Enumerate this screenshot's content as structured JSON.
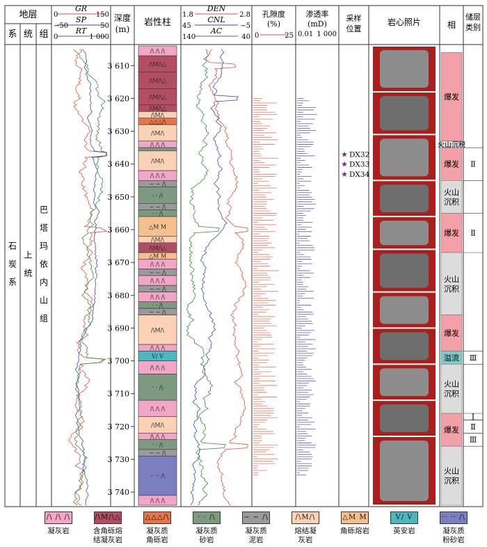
{
  "header": {
    "strata_title": "地层",
    "strata_cols": [
      "系",
      "统",
      "组"
    ],
    "log1": [
      {
        "name": "GR",
        "min": "0",
        "max": "150",
        "color": "#e0503c"
      },
      {
        "name": "SP",
        "min": "−50",
        "max": "50",
        "color": "#3c4ca0"
      },
      {
        "name": "RT",
        "min": "0",
        "max": "1 000",
        "color": "#3a8a3a"
      }
    ],
    "depth_title": "深度\n(m)",
    "lith_title": "岩性柱",
    "log2": [
      {
        "name": "DEN",
        "min": "1.8",
        "max": "2.8",
        "color": "#e0503c"
      },
      {
        "name": "CNL",
        "min": "45",
        "max": "−5",
        "color": "#3c4ca0"
      },
      {
        "name": "AC",
        "min": "140",
        "max": "40",
        "color": "#3a8a3a"
      }
    ],
    "porosity_title": "孔隙度\n(%)",
    "porosity_min": "0",
    "porosity_max": "25",
    "perm_title": "渗透率\n(mD)",
    "perm_min": "0.01",
    "perm_max": "1 000",
    "sample_title": "采样\n位置",
    "photo_title": "岩心照片",
    "facies_title": "相",
    "reservoir_title": "储层\n类别"
  },
  "strata": {
    "system": "石炭系",
    "series": "上统",
    "formation": "巴塔玛依内山组"
  },
  "depth_range": [
    3604,
    3744
  ],
  "depth_ticks": [
    "3 610",
    "3 620",
    "3 630",
    "3 640",
    "3 650",
    "3 660",
    "3 670",
    "3 680",
    "3 690",
    "3 700",
    "3 710",
    "3 720",
    "3 730",
    "3 740"
  ],
  "samples": [
    "DX32",
    "DX33",
    "DX34"
  ],
  "facies": [
    {
      "label": "爆发",
      "top": 3606,
      "bottom": 3633,
      "color": "#f4a0a8"
    },
    {
      "label": "火山沉积",
      "top": 3633,
      "bottom": 3635,
      "color": "#dcdcdc"
    },
    {
      "label": "爆发",
      "top": 3635,
      "bottom": 3645,
      "color": "#f4a0a8"
    },
    {
      "label": "火山\n沉积",
      "top": 3645,
      "bottom": 3655,
      "color": "#dcdcdc"
    },
    {
      "label": "爆发",
      "top": 3655,
      "bottom": 3667,
      "color": "#f4a0a8"
    },
    {
      "label": "火山\n沉积",
      "top": 3667,
      "bottom": 3686,
      "color": "#dcdcdc"
    },
    {
      "label": "爆发",
      "top": 3686,
      "bottom": 3697,
      "color": "#f4a0a8"
    },
    {
      "label": "溢流",
      "top": 3697,
      "bottom": 3701,
      "color": "#7ec8c8"
    },
    {
      "label": "火山\n沉积",
      "top": 3701,
      "bottom": 3716,
      "color": "#dcdcdc"
    },
    {
      "label": "爆发",
      "top": 3716,
      "bottom": 3726,
      "color": "#f4a0a8"
    },
    {
      "label": "火山\n沉积",
      "top": 3726,
      "bottom": 3744,
      "color": "#dcdcdc"
    }
  ],
  "reservoir": [
    {
      "label": "Ⅱ",
      "top": 3635,
      "bottom": 3645
    },
    {
      "label": "Ⅱ",
      "top": 3655,
      "bottom": 3667
    },
    {
      "label": "Ⅲ",
      "top": 3697,
      "bottom": 3701
    },
    {
      "label": "Ⅰ",
      "top": 3716,
      "bottom": 3718
    },
    {
      "label": "Ⅱ",
      "top": 3718,
      "bottom": 3722
    },
    {
      "label": "Ⅲ",
      "top": 3722,
      "bottom": 3726
    }
  ],
  "legend": [
    {
      "label": "凝灰岩",
      "symbol": "/\\ /\\ /\\",
      "color": "#f2a6c8"
    },
    {
      "label": "含角砾熔\n结凝灰岩",
      "symbol": "/\\M/\\△",
      "color": "#b24e64"
    },
    {
      "label": "凝灰质\n角砾岩",
      "symbol": "△△△/\\",
      "color": "#e8744a"
    },
    {
      "label": "凝灰质\n砂岩",
      "symbol": "· · /\\",
      "color": "#7d9a80"
    },
    {
      "label": "凝灰质\n泥岩",
      "symbol": "− − /\\",
      "color": "#9a9a9a"
    },
    {
      "label": "熔结凝\n灰岩",
      "symbol": "/\\M/\\",
      "color": "#fbd2b6"
    },
    {
      "label": "角砾熔岩",
      "symbol": "△M M",
      "color": "#f6c08e"
    },
    {
      "label": "英安岩",
      "symbol": "V/ V",
      "color": "#4bb8c0"
    },
    {
      "label": "凝灰质\n粉砂岩",
      "symbol": "·· ·· /\\",
      "color": "#7c7fbf"
    }
  ]
}
